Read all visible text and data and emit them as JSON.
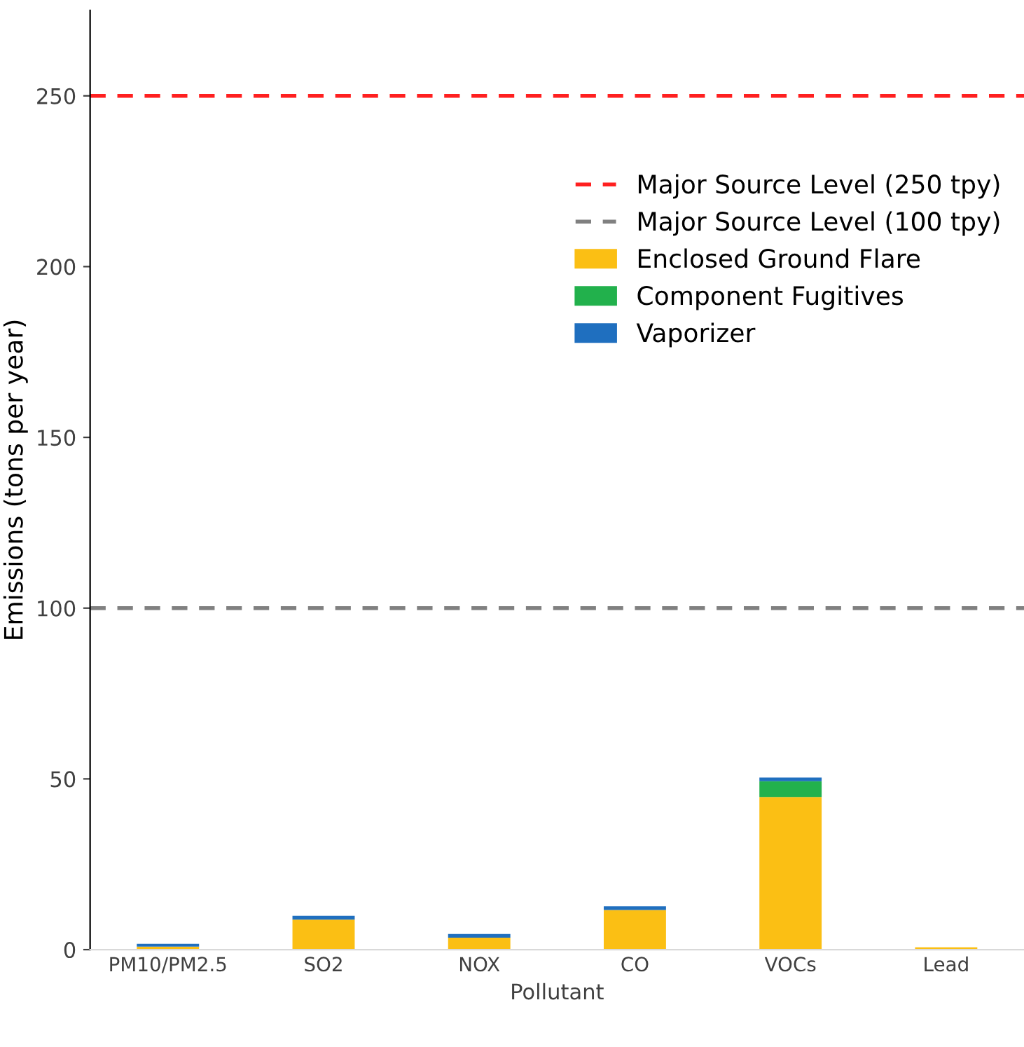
{
  "chart_data": {
    "type": "bar",
    "stacked": true,
    "xlabel": "Pollutant",
    "ylabel": "Emissions (tons per year)",
    "categories": [
      "PM10/PM2.5",
      "SO2",
      "NOX",
      "CO",
      "VOCs",
      "Lead"
    ],
    "series": [
      {
        "name": "Enclosed Ground Flare",
        "color": "#fbbf14",
        "values": [
          0.9,
          8.8,
          3.5,
          11.6,
          44.7,
          0.7
        ]
      },
      {
        "name": "Component Fugitives",
        "color": "#22b14c",
        "values": [
          0,
          0,
          0,
          0,
          4.6,
          0
        ]
      },
      {
        "name": "Vaporizer",
        "color": "#1f6fbf",
        "values": [
          0.8,
          1.1,
          1.1,
          1.1,
          1.1,
          0
        ]
      }
    ],
    "ref_lines": [
      {
        "axis": "y",
        "value": 250,
        "label": "Major Source Level (250 tpy)",
        "color": "#ff2020",
        "line_style": "dashed"
      },
      {
        "axis": "y",
        "value": 100,
        "label": "Major Source Level (100 tpy)",
        "color": "#808080",
        "line_style": "dashed"
      }
    ],
    "ylim": [
      0,
      275
    ],
    "yticks": [
      0,
      50,
      100,
      150,
      200,
      250
    ],
    "grid": false,
    "legend": "top right"
  }
}
